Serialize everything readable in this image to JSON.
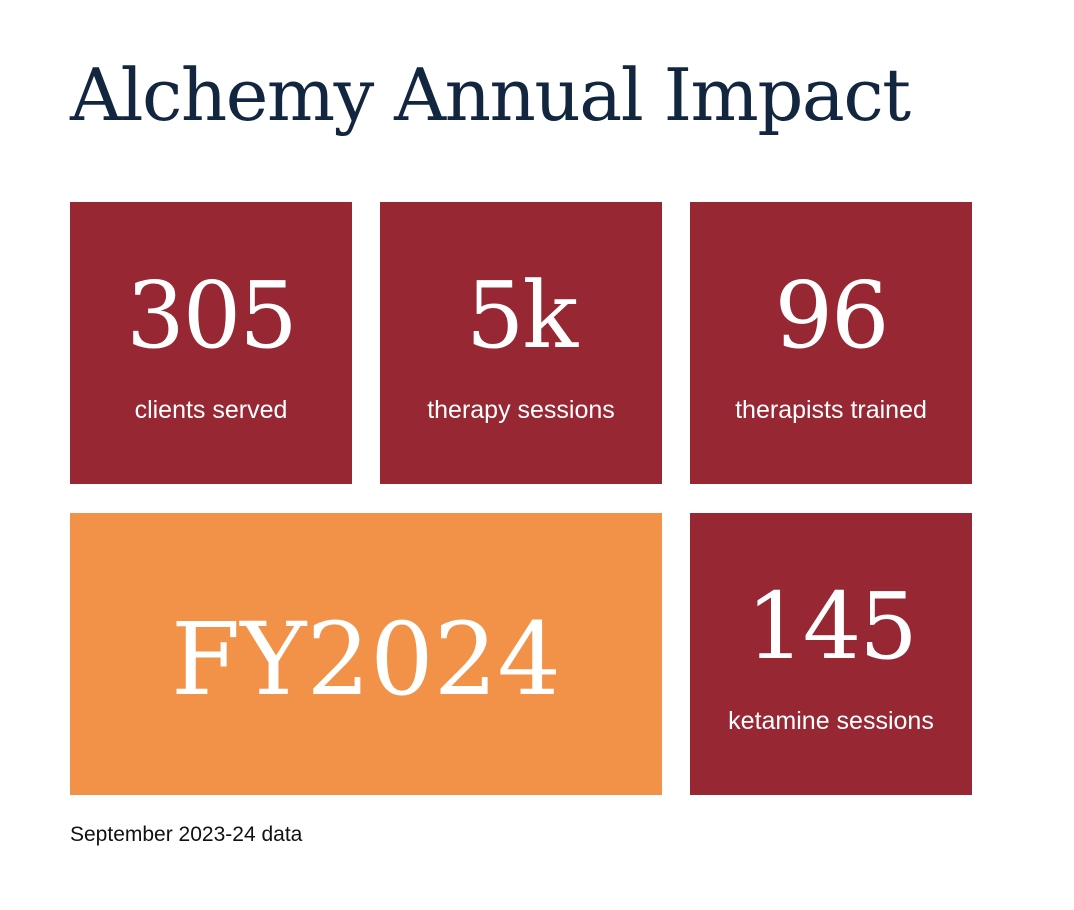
{
  "title": "Alchemy Annual Impact",
  "colors": {
    "title": "#13263f",
    "tile_red": "#962733",
    "tile_orange": "#f29148",
    "tile_text": "#ffffff"
  },
  "stats": [
    {
      "value": "305",
      "label": "clients served"
    },
    {
      "value": "5k",
      "label": "therapy sessions"
    },
    {
      "value": "96",
      "label": "therapists trained"
    },
    {
      "value": "145",
      "label": "ketamine sessions"
    }
  ],
  "highlight": {
    "value": "FY2024"
  },
  "footnote": "September 2023-24 data"
}
